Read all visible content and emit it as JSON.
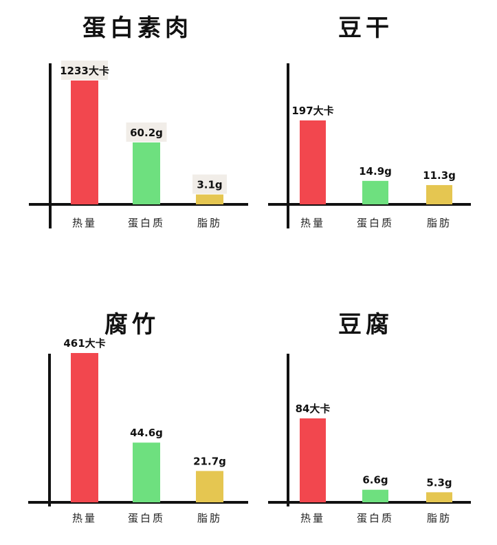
{
  "colors": {
    "axis": "#111111",
    "label_bg": "#f1ede8",
    "series": [
      "#f2474e",
      "#6ee07f",
      "#e5c651"
    ]
  },
  "chart_data": [
    {
      "type": "bar",
      "title": "蛋白素肉",
      "categories": [
        "热量",
        "蛋白质",
        "脂肪"
      ],
      "values": [
        1233,
        60.2,
        3.1
      ],
      "value_labels": [
        "1233大卡",
        "60.2g",
        "3.1g"
      ],
      "label_style": "boxed",
      "bar_heights_pct": [
        100,
        50,
        8
      ]
    },
    {
      "type": "bar",
      "title": "豆干",
      "categories": [
        "热量",
        "蛋白质",
        "脂肪"
      ],
      "values": [
        197,
        14.9,
        11.3
      ],
      "value_labels": [
        "197大卡",
        "14.9g",
        "11.3g"
      ],
      "label_style": "plain",
      "bar_heights_pct": [
        100,
        28,
        23
      ]
    },
    {
      "type": "bar",
      "title": "腐竹",
      "categories": [
        "热量",
        "蛋白质",
        "脂肪"
      ],
      "values": [
        461,
        44.6,
        21.7
      ],
      "value_labels": [
        "461大卡",
        "44.6g",
        "21.7g"
      ],
      "label_style": "plain",
      "bar_heights_pct": [
        100,
        40,
        21
      ]
    },
    {
      "type": "bar",
      "title": "豆腐",
      "categories": [
        "热量",
        "蛋白质",
        "脂肪"
      ],
      "values": [
        84,
        6.6,
        5.3
      ],
      "value_labels": [
        "84大卡",
        "6.6g",
        "5.3g"
      ],
      "label_style": "plain",
      "bar_heights_pct": [
        100,
        15,
        12
      ]
    }
  ]
}
